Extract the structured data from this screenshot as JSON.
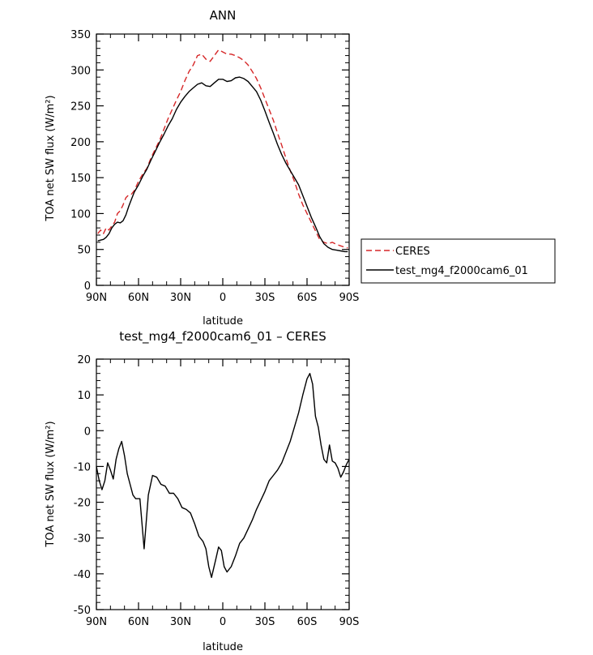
{
  "chart_data": [
    {
      "type": "line",
      "title": "ANN",
      "xlabel": "latitude",
      "ylabel": "TOA net SW flux (W/m²)",
      "x_ticks": [
        -90,
        -60,
        -30,
        0,
        30,
        60,
        90
      ],
      "x_tick_labels": [
        "90N",
        "60N",
        "30N",
        "0",
        "30S",
        "60S",
        "90S"
      ],
      "xlim": [
        -90,
        90
      ],
      "ylim": [
        0,
        350
      ],
      "y_ticks": [
        0,
        50,
        100,
        150,
        200,
        250,
        300,
        350
      ],
      "grid": false,
      "legend_position": "outside-right",
      "series": [
        {
          "name": "CERES",
          "color": "#d62728",
          "dash": "dashed",
          "x": [
            -89,
            -87,
            -85,
            -83,
            -81,
            -79,
            -77,
            -75,
            -73,
            -71,
            -69,
            -67,
            -65,
            -63,
            -60,
            -57,
            -54,
            -51,
            -48,
            -45,
            -42,
            -39,
            -36,
            -33,
            -30,
            -27,
            -24,
            -21,
            -18,
            -15,
            -12,
            -9,
            -6,
            -3,
            0,
            3,
            6,
            9,
            12,
            15,
            18,
            21,
            24,
            27,
            30,
            33,
            36,
            39,
            42,
            45,
            48,
            51,
            54,
            57,
            60,
            63,
            66,
            69,
            72,
            75,
            78,
            81,
            84,
            87,
            89
          ],
          "y": [
            72,
            77,
            72,
            80,
            77,
            83,
            88,
            100,
            104,
            112,
            122,
            126,
            127,
            132,
            145,
            155,
            163,
            178,
            190,
            202,
            217,
            232,
            245,
            258,
            270,
            285,
            298,
            307,
            320,
            322,
            315,
            312,
            320,
            328,
            325,
            322,
            322,
            320,
            317,
            313,
            307,
            298,
            288,
            275,
            260,
            245,
            230,
            212,
            195,
            177,
            160,
            145,
            127,
            112,
            100,
            88,
            76,
            64,
            60,
            58,
            60,
            57,
            55,
            53,
            52
          ]
        },
        {
          "name": "test_mg4_f2000cam6_01",
          "color": "#000000",
          "dash": "solid",
          "x": [
            -89,
            -87,
            -85,
            -83,
            -81,
            -79,
            -77,
            -75,
            -73,
            -71,
            -69,
            -67,
            -65,
            -63,
            -60,
            -57,
            -54,
            -51,
            -48,
            -45,
            -42,
            -39,
            -36,
            -33,
            -30,
            -27,
            -24,
            -21,
            -18,
            -15,
            -12,
            -9,
            -6,
            -3,
            0,
            3,
            6,
            9,
            12,
            15,
            18,
            21,
            24,
            27,
            30,
            33,
            36,
            39,
            42,
            45,
            48,
            51,
            54,
            57,
            60,
            63,
            66,
            69,
            72,
            75,
            78,
            81,
            84,
            87,
            89
          ],
          "y": [
            62,
            63,
            64,
            67,
            72,
            80,
            85,
            88,
            87,
            90,
            98,
            110,
            120,
            130,
            140,
            152,
            162,
            175,
            187,
            199,
            210,
            222,
            232,
            245,
            255,
            263,
            270,
            275,
            280,
            282,
            278,
            277,
            282,
            287,
            287,
            284,
            285,
            289,
            290,
            288,
            284,
            277,
            270,
            258,
            243,
            227,
            212,
            196,
            182,
            170,
            160,
            150,
            140,
            125,
            110,
            95,
            82,
            68,
            58,
            53,
            50,
            49,
            48,
            47,
            47
          ]
        }
      ]
    },
    {
      "type": "line",
      "title": "test_mg4_f2000cam6_01 – CERES",
      "xlabel": "latitude",
      "ylabel": "TOA net SW flux (W/m²)",
      "x_ticks": [
        -90,
        -60,
        -30,
        0,
        30,
        60,
        90
      ],
      "x_tick_labels": [
        "90N",
        "60N",
        "30N",
        "0",
        "30S",
        "60S",
        "90S"
      ],
      "xlim": [
        -90,
        90
      ],
      "ylim": [
        -50,
        20
      ],
      "y_ticks": [
        -50,
        -40,
        -30,
        -20,
        -10,
        0,
        10,
        20
      ],
      "grid": false,
      "series": [
        {
          "name": "",
          "color": "#000000",
          "dash": "solid",
          "x": [
            -90,
            -88,
            -86,
            -84,
            -82,
            -80,
            -78,
            -76,
            -74,
            -72,
            -70,
            -68,
            -66,
            -64,
            -62,
            -59,
            -56,
            -53,
            -50,
            -47,
            -44,
            -41,
            -38,
            -35,
            -32,
            -29,
            -26,
            -23,
            -20,
            -17,
            -14,
            -12,
            -10,
            -8,
            -5,
            -3,
            -1,
            1,
            3,
            6,
            9,
            12,
            15,
            18,
            21,
            24,
            27,
            30,
            33,
            36,
            39,
            42,
            45,
            48,
            51,
            54,
            57,
            60,
            62,
            64,
            66,
            68,
            70,
            72,
            74,
            76,
            78,
            80,
            82,
            84,
            86,
            88,
            90
          ],
          "y": [
            -10,
            -14,
            -16.5,
            -14,
            -9,
            -11,
            -13.5,
            -8,
            -5,
            -3,
            -7,
            -12,
            -15,
            -18,
            -19,
            -19,
            -33,
            -18,
            -12.5,
            -13,
            -15,
            -15.5,
            -17.5,
            -17.5,
            -19,
            -21.5,
            -22,
            -23,
            -26,
            -29.5,
            -31,
            -33,
            -38,
            -41,
            -36,
            -32.5,
            -33.5,
            -38,
            -39.5,
            -38,
            -35,
            -31.5,
            -30,
            -27.5,
            -25,
            -22,
            -19.5,
            -17,
            -14,
            -12.5,
            -11,
            -9,
            -6,
            -3,
            1,
            5,
            10,
            14.5,
            16,
            13,
            4,
            1,
            -4,
            -8,
            -9,
            -4,
            -8.5,
            -9,
            -10.5,
            -13,
            -11.5,
            -9.5,
            -8
          ]
        }
      ]
    }
  ]
}
